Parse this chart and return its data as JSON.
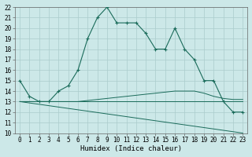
{
  "xlabel": "Humidex (Indice chaleur)",
  "xlim": [
    -0.5,
    23.5
  ],
  "ylim": [
    10,
    22
  ],
  "yticks": [
    10,
    11,
    12,
    13,
    14,
    15,
    16,
    17,
    18,
    19,
    20,
    21,
    22
  ],
  "xticks": [
    0,
    1,
    2,
    3,
    4,
    5,
    6,
    7,
    8,
    9,
    10,
    11,
    12,
    13,
    14,
    15,
    16,
    17,
    18,
    19,
    20,
    21,
    22,
    23
  ],
  "bg_color": "#cce8e8",
  "grid_color": "#aacccc",
  "line_color": "#1a6b5a",
  "main_line": {
    "x": [
      0,
      1,
      2,
      3,
      4,
      5,
      6,
      7,
      8,
      9,
      10,
      11,
      12,
      13,
      14,
      15,
      16,
      17,
      18,
      19,
      20,
      21,
      22,
      23
    ],
    "y": [
      15.0,
      13.5,
      13.0,
      13.0,
      14.0,
      14.5,
      16.0,
      19.0,
      21.0,
      22.0,
      20.5,
      20.5,
      20.5,
      19.5,
      18.0,
      18.0,
      20.0,
      18.0,
      17.0,
      15.0,
      15.0,
      13.0,
      12.0,
      12.0
    ]
  },
  "line2": {
    "x": [
      0,
      1,
      2,
      3,
      4,
      5,
      6,
      7,
      8,
      9,
      10,
      11,
      12,
      13,
      14,
      15,
      16,
      17,
      18,
      19,
      20,
      21,
      22,
      23
    ],
    "y": [
      13.0,
      13.0,
      13.0,
      13.0,
      13.0,
      13.0,
      13.0,
      13.1,
      13.2,
      13.3,
      13.4,
      13.5,
      13.6,
      13.7,
      13.8,
      13.9,
      14.0,
      14.0,
      14.0,
      13.8,
      13.5,
      13.3,
      13.2,
      13.2
    ]
  },
  "line3": {
    "x": [
      0,
      23
    ],
    "y": [
      13.0,
      13.0
    ]
  },
  "line4": {
    "x": [
      0,
      23
    ],
    "y": [
      13.0,
      10.0
    ]
  }
}
